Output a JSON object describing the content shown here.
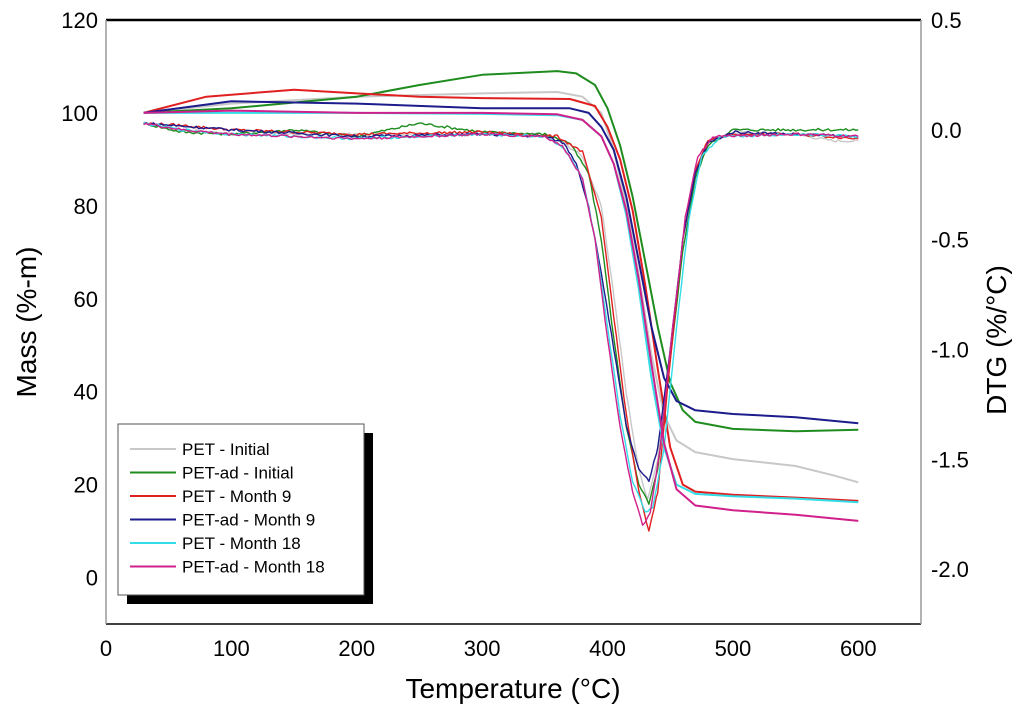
{
  "chart_data": {
    "type": "line",
    "title": "",
    "xlabel": "Temperature (°C)",
    "ylabel": "Mass (%-m)",
    "y2label": "DTG (%/°C)",
    "xlim": [
      0,
      650
    ],
    "ylim": [
      -10,
      120
    ],
    "y2lim": [
      -2.25,
      0.5
    ],
    "xticks": [
      0,
      100,
      200,
      300,
      400,
      500,
      600
    ],
    "yticks": [
      0,
      20,
      40,
      60,
      80,
      100,
      120
    ],
    "y2ticks": [
      -2.0,
      -1.5,
      -1.0,
      -0.5,
      0.0,
      0.5
    ],
    "y2tick_labels": [
      "-2.0",
      "-1.5",
      "-1.0",
      "-0.5",
      "0.0",
      "0.5"
    ],
    "legend_position": "bottom-left",
    "series": [
      {
        "name": "PET - Initial",
        "color": "#c8c8c8",
        "mass": [
          [
            30,
            100
          ],
          [
            100,
            102
          ],
          [
            200,
            103.5
          ],
          [
            300,
            104.2
          ],
          [
            360,
            104.5
          ],
          [
            380,
            103.5
          ],
          [
            395,
            100
          ],
          [
            405,
            92
          ],
          [
            415,
            80
          ],
          [
            425,
            65
          ],
          [
            435,
            48
          ],
          [
            445,
            35
          ],
          [
            455,
            29.5
          ],
          [
            470,
            27
          ],
          [
            500,
            25.5
          ],
          [
            550,
            24
          ],
          [
            580,
            22
          ],
          [
            600,
            20.5
          ]
        ],
        "dtg": [
          [
            30,
            0.03
          ],
          [
            50,
            0.01
          ],
          [
            100,
            -0.02
          ],
          [
            200,
            -0.02
          ],
          [
            300,
            -0.02
          ],
          [
            340,
            -0.02
          ],
          [
            360,
            -0.04
          ],
          [
            380,
            -0.12
          ],
          [
            395,
            -0.35
          ],
          [
            405,
            -0.75
          ],
          [
            415,
            -1.2
          ],
          [
            425,
            -1.55
          ],
          [
            432,
            -1.68
          ],
          [
            440,
            -1.5
          ],
          [
            450,
            -1.0
          ],
          [
            460,
            -0.5
          ],
          [
            470,
            -0.2
          ],
          [
            480,
            -0.06
          ],
          [
            500,
            -0.01
          ],
          [
            550,
            -0.02
          ],
          [
            580,
            -0.05
          ],
          [
            600,
            -0.05
          ]
        ]
      },
      {
        "name": "PET-ad - Initial",
        "color": "#1e8c1e",
        "mass": [
          [
            30,
            100
          ],
          [
            100,
            101
          ],
          [
            200,
            103.5
          ],
          [
            250,
            106
          ],
          [
            300,
            108.2
          ],
          [
            360,
            109
          ],
          [
            375,
            108.5
          ],
          [
            390,
            106
          ],
          [
            400,
            101
          ],
          [
            410,
            93
          ],
          [
            420,
            82
          ],
          [
            430,
            68
          ],
          [
            440,
            54
          ],
          [
            450,
            42
          ],
          [
            460,
            36
          ],
          [
            470,
            33.5
          ],
          [
            500,
            32
          ],
          [
            550,
            31.5
          ],
          [
            600,
            31.8
          ]
        ],
        "dtg": [
          [
            30,
            0.03
          ],
          [
            60,
            -0.01
          ],
          [
            100,
            -0.02
          ],
          [
            150,
            0.0
          ],
          [
            200,
            -0.03
          ],
          [
            250,
            0.03
          ],
          [
            300,
            -0.01
          ],
          [
            350,
            -0.02
          ],
          [
            370,
            -0.06
          ],
          [
            385,
            -0.2
          ],
          [
            395,
            -0.5
          ],
          [
            405,
            -0.95
          ],
          [
            415,
            -1.35
          ],
          [
            425,
            -1.62
          ],
          [
            433,
            -1.7
          ],
          [
            440,
            -1.55
          ],
          [
            450,
            -1.05
          ],
          [
            460,
            -0.55
          ],
          [
            470,
            -0.22
          ],
          [
            480,
            -0.07
          ],
          [
            500,
            0.0
          ],
          [
            550,
            0.0
          ],
          [
            600,
            0.0
          ]
        ]
      },
      {
        "name": "PET - Month 9",
        "color": "#e02020",
        "mass": [
          [
            30,
            100
          ],
          [
            80,
            103.5
          ],
          [
            150,
            105
          ],
          [
            200,
            104.2
          ],
          [
            250,
            103.5
          ],
          [
            300,
            103.2
          ],
          [
            370,
            103
          ],
          [
            390,
            101.5
          ],
          [
            400,
            97
          ],
          [
            410,
            90
          ],
          [
            420,
            79
          ],
          [
            430,
            63
          ],
          [
            440,
            45
          ],
          [
            450,
            28
          ],
          [
            460,
            20
          ],
          [
            470,
            18.5
          ],
          [
            500,
            17.8
          ],
          [
            550,
            17.2
          ],
          [
            600,
            16.5
          ]
        ],
        "dtg": [
          [
            30,
            0.03
          ],
          [
            60,
            0.02
          ],
          [
            100,
            0.0
          ],
          [
            150,
            -0.01
          ],
          [
            200,
            -0.02
          ],
          [
            300,
            -0.01
          ],
          [
            360,
            -0.03
          ],
          [
            380,
            -0.1
          ],
          [
            395,
            -0.4
          ],
          [
            405,
            -0.85
          ],
          [
            415,
            -1.3
          ],
          [
            425,
            -1.65
          ],
          [
            433,
            -1.83
          ],
          [
            440,
            -1.65
          ],
          [
            450,
            -1.05
          ],
          [
            460,
            -0.5
          ],
          [
            470,
            -0.18
          ],
          [
            480,
            -0.05
          ],
          [
            500,
            -0.02
          ],
          [
            550,
            -0.02
          ],
          [
            600,
            -0.04
          ]
        ]
      },
      {
        "name": "PET-ad - Month 9",
        "color": "#1c1c8c",
        "mass": [
          [
            30,
            100
          ],
          [
            100,
            102.5
          ],
          [
            200,
            102
          ],
          [
            300,
            101
          ],
          [
            370,
            101
          ],
          [
            385,
            100
          ],
          [
            395,
            97
          ],
          [
            405,
            92
          ],
          [
            415,
            82
          ],
          [
            425,
            68
          ],
          [
            435,
            54
          ],
          [
            445,
            43
          ],
          [
            455,
            38
          ],
          [
            470,
            36
          ],
          [
            500,
            35.2
          ],
          [
            550,
            34.5
          ],
          [
            600,
            33.2
          ]
        ],
        "dtg": [
          [
            30,
            0.03
          ],
          [
            100,
            0.0
          ],
          [
            200,
            -0.03
          ],
          [
            300,
            -0.02
          ],
          [
            350,
            -0.03
          ],
          [
            365,
            -0.06
          ],
          [
            375,
            -0.15
          ],
          [
            385,
            -0.35
          ],
          [
            395,
            -0.65
          ],
          [
            405,
            -1.0
          ],
          [
            415,
            -1.35
          ],
          [
            425,
            -1.55
          ],
          [
            433,
            -1.6
          ],
          [
            440,
            -1.45
          ],
          [
            450,
            -1.0
          ],
          [
            460,
            -0.5
          ],
          [
            470,
            -0.2
          ],
          [
            480,
            -0.06
          ],
          [
            500,
            -0.01
          ],
          [
            550,
            -0.02
          ],
          [
            600,
            -0.03
          ]
        ]
      },
      {
        "name": "PET - Month 18",
        "color": "#33dde8",
        "mass": [
          [
            30,
            100
          ],
          [
            100,
            100
          ],
          [
            200,
            100
          ],
          [
            300,
            99.8
          ],
          [
            360,
            99.5
          ],
          [
            380,
            98.5
          ],
          [
            395,
            95
          ],
          [
            405,
            89
          ],
          [
            415,
            78
          ],
          [
            425,
            62
          ],
          [
            435,
            43
          ],
          [
            445,
            28
          ],
          [
            455,
            20
          ],
          [
            470,
            18
          ],
          [
            500,
            17.5
          ],
          [
            550,
            17
          ],
          [
            600,
            16.2
          ]
        ],
        "dtg": [
          [
            30,
            0.03
          ],
          [
            60,
            0.0
          ],
          [
            100,
            -0.02
          ],
          [
            200,
            -0.04
          ],
          [
            300,
            -0.02
          ],
          [
            350,
            -0.03
          ],
          [
            365,
            -0.08
          ],
          [
            380,
            -0.22
          ],
          [
            390,
            -0.5
          ],
          [
            400,
            -0.9
          ],
          [
            410,
            -1.3
          ],
          [
            420,
            -1.6
          ],
          [
            430,
            -1.74
          ],
          [
            436,
            -1.72
          ],
          [
            445,
            -1.45
          ],
          [
            455,
            -0.9
          ],
          [
            465,
            -0.4
          ],
          [
            475,
            -0.12
          ],
          [
            490,
            -0.03
          ],
          [
            550,
            -0.02
          ],
          [
            600,
            -0.03
          ]
        ]
      },
      {
        "name": "PET-ad - Month 18",
        "color": "#d0208c",
        "mass": [
          [
            30,
            100
          ],
          [
            100,
            100.5
          ],
          [
            200,
            100
          ],
          [
            300,
            100
          ],
          [
            360,
            99.7
          ],
          [
            380,
            98.5
          ],
          [
            395,
            95
          ],
          [
            405,
            89
          ],
          [
            415,
            79
          ],
          [
            425,
            64
          ],
          [
            435,
            46
          ],
          [
            445,
            29
          ],
          [
            455,
            19
          ],
          [
            470,
            15.5
          ],
          [
            500,
            14.5
          ],
          [
            550,
            13.5
          ],
          [
            600,
            12.2
          ]
        ],
        "dtg": [
          [
            30,
            0.03
          ],
          [
            60,
            0.0
          ],
          [
            100,
            -0.02
          ],
          [
            200,
            -0.04
          ],
          [
            300,
            -0.02
          ],
          [
            350,
            -0.03
          ],
          [
            365,
            -0.08
          ],
          [
            380,
            -0.22
          ],
          [
            390,
            -0.5
          ],
          [
            400,
            -0.95
          ],
          [
            410,
            -1.35
          ],
          [
            420,
            -1.65
          ],
          [
            428,
            -1.8
          ],
          [
            434,
            -1.75
          ],
          [
            442,
            -1.45
          ],
          [
            452,
            -0.9
          ],
          [
            462,
            -0.4
          ],
          [
            472,
            -0.12
          ],
          [
            485,
            -0.03
          ],
          [
            550,
            -0.02
          ],
          [
            600,
            -0.03
          ]
        ]
      }
    ]
  }
}
